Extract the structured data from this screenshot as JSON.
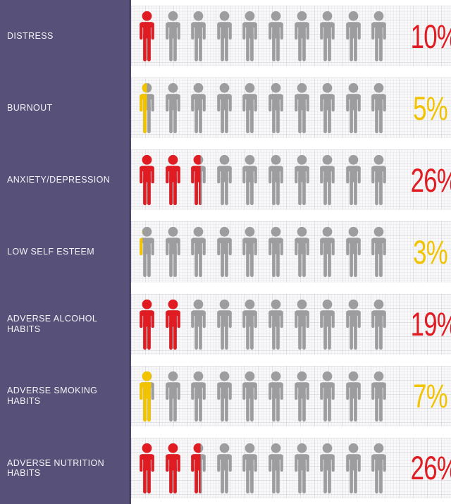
{
  "chart_data": {
    "type": "bar",
    "subtype": "pictogram",
    "title": "",
    "icons_per_row": 10,
    "percent_per_icon": 10,
    "categories": [
      "DISTRESS",
      "BURNOUT",
      "ANXIETY/DEPRESSION",
      "LOW SELF ESTEEM",
      "ADVERSE ALCOHOL HABITS",
      "ADVERSE SMOKING HABITS",
      "ADVERSE NUTRITION HABITS"
    ],
    "values": [
      10,
      5,
      26,
      3,
      19,
      7,
      26
    ],
    "value_labels": [
      "10%",
      "5%",
      "26%",
      "3%",
      "19%",
      "7%",
      "26%"
    ],
    "series_color_names": [
      "red",
      "yellow",
      "red",
      "yellow",
      "red",
      "yellow",
      "red"
    ],
    "colors": {
      "red": "#e01b22",
      "yellow": "#f2c300",
      "inactive_icon": "#9d9d9f",
      "sidebar_background": "#575179",
      "label_text": "#f4f3f7",
      "band_background": "#f8f8f9"
    },
    "legend": null,
    "xlabel": "",
    "ylabel": "",
    "layout": "7 horizontal rows, each 10 person icons; colored fraction of icons = value/10; percent label right-aligned"
  }
}
